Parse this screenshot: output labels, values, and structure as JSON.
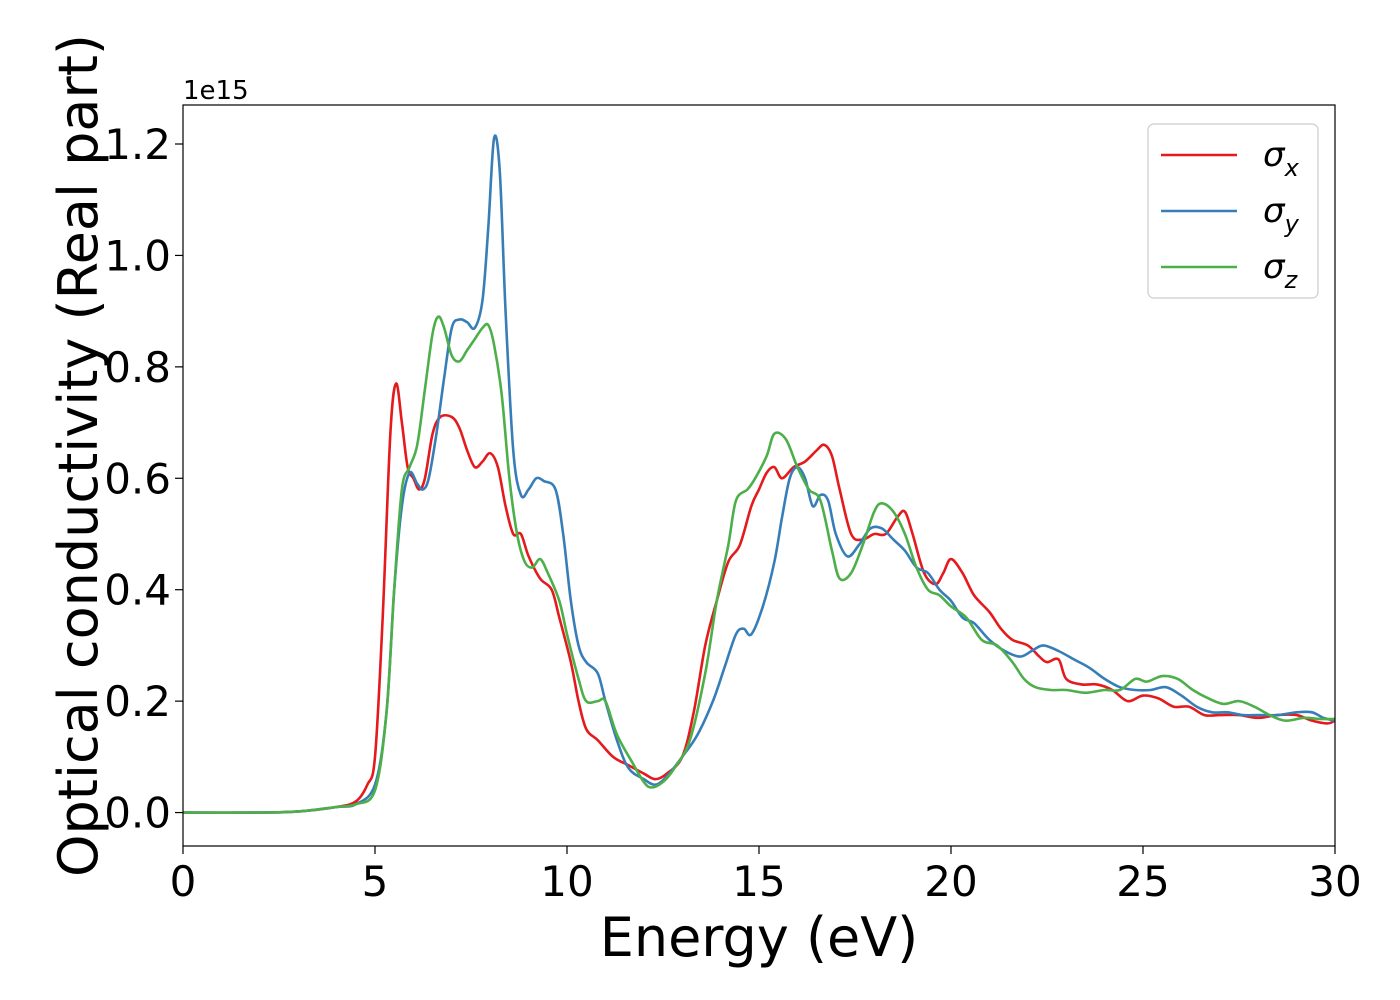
{
  "chart_data": {
    "type": "line",
    "xlabel": "Energy (eV)",
    "ylabel": "Optical conductivity (Real part)",
    "y_offset_text": "1e15",
    "xlim": [
      0,
      30
    ],
    "ylim": [
      -0.06,
      1.27
    ],
    "x_ticks": [
      0,
      5,
      10,
      15,
      20,
      25,
      30
    ],
    "y_ticks": [
      0.0,
      0.2,
      0.4,
      0.6,
      0.8,
      1.0,
      1.2
    ],
    "y_tick_labels": [
      "0.0",
      "0.2",
      "0.4",
      "0.6",
      "0.8",
      "1.0",
      "1.2"
    ],
    "grid": false,
    "legend_position": "top-right",
    "series": [
      {
        "name": "σx",
        "name_base": "σ",
        "name_sub": "x",
        "color": "#e41a1c",
        "points": [
          [
            0,
            0.0
          ],
          [
            2,
            0.0
          ],
          [
            3,
            0.002
          ],
          [
            4,
            0.01
          ],
          [
            4.5,
            0.02
          ],
          [
            4.8,
            0.05
          ],
          [
            5.0,
            0.1
          ],
          [
            5.2,
            0.35
          ],
          [
            5.4,
            0.68
          ],
          [
            5.55,
            0.77
          ],
          [
            5.7,
            0.7
          ],
          [
            5.85,
            0.62
          ],
          [
            6.0,
            0.6
          ],
          [
            6.15,
            0.58
          ],
          [
            6.3,
            0.6
          ],
          [
            6.5,
            0.68
          ],
          [
            6.7,
            0.71
          ],
          [
            7.0,
            0.71
          ],
          [
            7.2,
            0.69
          ],
          [
            7.4,
            0.65
          ],
          [
            7.6,
            0.62
          ],
          [
            7.8,
            0.63
          ],
          [
            8.0,
            0.645
          ],
          [
            8.2,
            0.62
          ],
          [
            8.4,
            0.55
          ],
          [
            8.6,
            0.5
          ],
          [
            8.8,
            0.5
          ],
          [
            9.0,
            0.46
          ],
          [
            9.3,
            0.42
          ],
          [
            9.6,
            0.4
          ],
          [
            9.8,
            0.35
          ],
          [
            10.1,
            0.27
          ],
          [
            10.3,
            0.2
          ],
          [
            10.5,
            0.15
          ],
          [
            10.8,
            0.13
          ],
          [
            11.2,
            0.1
          ],
          [
            11.6,
            0.085
          ],
          [
            12.0,
            0.07
          ],
          [
            12.3,
            0.06
          ],
          [
            12.6,
            0.07
          ],
          [
            13.0,
            0.1
          ],
          [
            13.3,
            0.18
          ],
          [
            13.6,
            0.3
          ],
          [
            13.9,
            0.38
          ],
          [
            14.2,
            0.45
          ],
          [
            14.5,
            0.48
          ],
          [
            14.8,
            0.55
          ],
          [
            15.0,
            0.58
          ],
          [
            15.2,
            0.61
          ],
          [
            15.4,
            0.62
          ],
          [
            15.6,
            0.6
          ],
          [
            15.9,
            0.62
          ],
          [
            16.2,
            0.63
          ],
          [
            16.5,
            0.65
          ],
          [
            16.7,
            0.66
          ],
          [
            16.9,
            0.64
          ],
          [
            17.1,
            0.58
          ],
          [
            17.4,
            0.5
          ],
          [
            17.7,
            0.49
          ],
          [
            18.0,
            0.5
          ],
          [
            18.3,
            0.5
          ],
          [
            18.6,
            0.53
          ],
          [
            18.8,
            0.54
          ],
          [
            19.0,
            0.5
          ],
          [
            19.3,
            0.43
          ],
          [
            19.6,
            0.41
          ],
          [
            19.8,
            0.43
          ],
          [
            20.0,
            0.455
          ],
          [
            20.3,
            0.43
          ],
          [
            20.6,
            0.39
          ],
          [
            21.0,
            0.36
          ],
          [
            21.3,
            0.33
          ],
          [
            21.6,
            0.31
          ],
          [
            22.0,
            0.3
          ],
          [
            22.3,
            0.28
          ],
          [
            22.5,
            0.27
          ],
          [
            22.8,
            0.275
          ],
          [
            23.0,
            0.24
          ],
          [
            23.4,
            0.23
          ],
          [
            23.8,
            0.23
          ],
          [
            24.2,
            0.22
          ],
          [
            24.6,
            0.2
          ],
          [
            25.0,
            0.21
          ],
          [
            25.4,
            0.205
          ],
          [
            25.8,
            0.19
          ],
          [
            26.2,
            0.19
          ],
          [
            26.6,
            0.175
          ],
          [
            27.0,
            0.175
          ],
          [
            27.5,
            0.175
          ],
          [
            28.0,
            0.17
          ],
          [
            28.5,
            0.175
          ],
          [
            29.0,
            0.175
          ],
          [
            29.4,
            0.165
          ],
          [
            29.8,
            0.16
          ],
          [
            30.0,
            0.165
          ]
        ]
      },
      {
        "name": "σy",
        "name_base": "σ",
        "name_sub": "y",
        "color": "#377eb8",
        "points": [
          [
            0,
            0.0
          ],
          [
            2,
            0.0
          ],
          [
            3,
            0.002
          ],
          [
            4,
            0.01
          ],
          [
            4.5,
            0.015
          ],
          [
            5.0,
            0.05
          ],
          [
            5.3,
            0.18
          ],
          [
            5.5,
            0.4
          ],
          [
            5.7,
            0.55
          ],
          [
            5.9,
            0.61
          ],
          [
            6.1,
            0.59
          ],
          [
            6.25,
            0.58
          ],
          [
            6.4,
            0.6
          ],
          [
            6.6,
            0.68
          ],
          [
            6.8,
            0.78
          ],
          [
            7.0,
            0.87
          ],
          [
            7.2,
            0.885
          ],
          [
            7.4,
            0.88
          ],
          [
            7.6,
            0.87
          ],
          [
            7.8,
            0.92
          ],
          [
            7.95,
            1.05
          ],
          [
            8.1,
            1.21
          ],
          [
            8.25,
            1.15
          ],
          [
            8.4,
            0.9
          ],
          [
            8.6,
            0.65
          ],
          [
            8.8,
            0.57
          ],
          [
            9.0,
            0.58
          ],
          [
            9.2,
            0.6
          ],
          [
            9.4,
            0.595
          ],
          [
            9.7,
            0.58
          ],
          [
            9.9,
            0.5
          ],
          [
            10.1,
            0.38
          ],
          [
            10.3,
            0.3
          ],
          [
            10.5,
            0.27
          ],
          [
            10.8,
            0.25
          ],
          [
            11.0,
            0.2
          ],
          [
            11.3,
            0.13
          ],
          [
            11.6,
            0.08
          ],
          [
            12.0,
            0.06
          ],
          [
            12.3,
            0.05
          ],
          [
            12.6,
            0.065
          ],
          [
            13.0,
            0.1
          ],
          [
            13.4,
            0.14
          ],
          [
            13.8,
            0.2
          ],
          [
            14.1,
            0.26
          ],
          [
            14.4,
            0.32
          ],
          [
            14.6,
            0.33
          ],
          [
            14.8,
            0.32
          ],
          [
            15.1,
            0.37
          ],
          [
            15.4,
            0.45
          ],
          [
            15.6,
            0.53
          ],
          [
            15.8,
            0.6
          ],
          [
            16.0,
            0.62
          ],
          [
            16.2,
            0.6
          ],
          [
            16.4,
            0.55
          ],
          [
            16.6,
            0.57
          ],
          [
            16.8,
            0.56
          ],
          [
            17.0,
            0.5
          ],
          [
            17.3,
            0.46
          ],
          [
            17.6,
            0.48
          ],
          [
            17.9,
            0.51
          ],
          [
            18.2,
            0.51
          ],
          [
            18.5,
            0.49
          ],
          [
            18.8,
            0.47
          ],
          [
            19.1,
            0.44
          ],
          [
            19.4,
            0.43
          ],
          [
            19.7,
            0.4
          ],
          [
            20.0,
            0.38
          ],
          [
            20.3,
            0.35
          ],
          [
            20.6,
            0.34
          ],
          [
            21.0,
            0.31
          ],
          [
            21.4,
            0.29
          ],
          [
            21.8,
            0.28
          ],
          [
            22.1,
            0.29
          ],
          [
            22.4,
            0.3
          ],
          [
            22.8,
            0.29
          ],
          [
            23.2,
            0.275
          ],
          [
            23.6,
            0.26
          ],
          [
            24.0,
            0.24
          ],
          [
            24.4,
            0.225
          ],
          [
            24.8,
            0.22
          ],
          [
            25.2,
            0.22
          ],
          [
            25.6,
            0.225
          ],
          [
            26.0,
            0.21
          ],
          [
            26.4,
            0.19
          ],
          [
            26.8,
            0.18
          ],
          [
            27.2,
            0.18
          ],
          [
            27.6,
            0.175
          ],
          [
            28.0,
            0.175
          ],
          [
            28.5,
            0.175
          ],
          [
            29.0,
            0.18
          ],
          [
            29.4,
            0.18
          ],
          [
            29.7,
            0.17
          ],
          [
            30.0,
            0.165
          ]
        ]
      },
      {
        "name": "σz",
        "name_base": "σ",
        "name_sub": "z",
        "color": "#4daf4a",
        "points": [
          [
            0,
            0.0
          ],
          [
            2,
            0.0
          ],
          [
            3,
            0.002
          ],
          [
            4,
            0.01
          ],
          [
            4.5,
            0.015
          ],
          [
            5.0,
            0.04
          ],
          [
            5.3,
            0.18
          ],
          [
            5.5,
            0.4
          ],
          [
            5.7,
            0.58
          ],
          [
            5.9,
            0.62
          ],
          [
            6.1,
            0.66
          ],
          [
            6.3,
            0.76
          ],
          [
            6.5,
            0.86
          ],
          [
            6.65,
            0.89
          ],
          [
            6.8,
            0.87
          ],
          [
            7.0,
            0.82
          ],
          [
            7.2,
            0.81
          ],
          [
            7.4,
            0.83
          ],
          [
            7.6,
            0.85
          ],
          [
            7.8,
            0.87
          ],
          [
            7.95,
            0.875
          ],
          [
            8.1,
            0.84
          ],
          [
            8.3,
            0.75
          ],
          [
            8.5,
            0.6
          ],
          [
            8.7,
            0.5
          ],
          [
            8.9,
            0.45
          ],
          [
            9.1,
            0.44
          ],
          [
            9.3,
            0.455
          ],
          [
            9.5,
            0.43
          ],
          [
            9.8,
            0.38
          ],
          [
            10.0,
            0.32
          ],
          [
            10.3,
            0.24
          ],
          [
            10.5,
            0.2
          ],
          [
            10.8,
            0.2
          ],
          [
            11.0,
            0.2
          ],
          [
            11.3,
            0.14
          ],
          [
            11.7,
            0.09
          ],
          [
            12.0,
            0.055
          ],
          [
            12.2,
            0.045
          ],
          [
            12.5,
            0.055
          ],
          [
            12.8,
            0.08
          ],
          [
            13.2,
            0.13
          ],
          [
            13.6,
            0.25
          ],
          [
            13.9,
            0.38
          ],
          [
            14.2,
            0.48
          ],
          [
            14.4,
            0.56
          ],
          [
            14.7,
            0.58
          ],
          [
            14.9,
            0.6
          ],
          [
            15.2,
            0.64
          ],
          [
            15.4,
            0.68
          ],
          [
            15.7,
            0.67
          ],
          [
            16.0,
            0.62
          ],
          [
            16.3,
            0.58
          ],
          [
            16.6,
            0.56
          ],
          [
            16.9,
            0.47
          ],
          [
            17.1,
            0.42
          ],
          [
            17.4,
            0.43
          ],
          [
            17.7,
            0.48
          ],
          [
            18.0,
            0.54
          ],
          [
            18.2,
            0.555
          ],
          [
            18.5,
            0.54
          ],
          [
            18.8,
            0.5
          ],
          [
            19.1,
            0.44
          ],
          [
            19.4,
            0.4
          ],
          [
            19.7,
            0.39
          ],
          [
            20.0,
            0.37
          ],
          [
            20.4,
            0.35
          ],
          [
            20.8,
            0.31
          ],
          [
            21.2,
            0.3
          ],
          [
            21.6,
            0.27
          ],
          [
            21.9,
            0.24
          ],
          [
            22.2,
            0.225
          ],
          [
            22.6,
            0.22
          ],
          [
            23.0,
            0.22
          ],
          [
            23.5,
            0.215
          ],
          [
            24.0,
            0.22
          ],
          [
            24.4,
            0.22
          ],
          [
            24.8,
            0.24
          ],
          [
            25.1,
            0.235
          ],
          [
            25.5,
            0.245
          ],
          [
            25.9,
            0.24
          ],
          [
            26.3,
            0.22
          ],
          [
            26.7,
            0.205
          ],
          [
            27.1,
            0.195
          ],
          [
            27.5,
            0.2
          ],
          [
            27.9,
            0.19
          ],
          [
            28.3,
            0.175
          ],
          [
            28.7,
            0.165
          ],
          [
            29.2,
            0.17
          ],
          [
            29.6,
            0.168
          ],
          [
            30.0,
            0.168
          ]
        ]
      }
    ]
  }
}
